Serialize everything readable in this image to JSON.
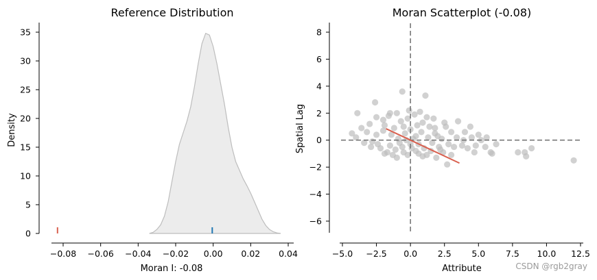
{
  "chart_data": [
    {
      "type": "area",
      "title": "Reference Distribution",
      "xlabel": "Moran I: -0.08",
      "ylabel": "Density",
      "xlim": [
        -0.09,
        0.04
      ],
      "ylim": [
        0,
        36
      ],
      "xticks": [
        -0.08,
        -0.06,
        -0.04,
        -0.02,
        0.0,
        0.02,
        0.04
      ],
      "xtick_labels": [
        "−0.08",
        "−0.06",
        "−0.04",
        "−0.02",
        "0.00",
        "0.02",
        "0.04"
      ],
      "yticks": [
        0,
        5,
        10,
        15,
        20,
        25,
        30,
        35
      ],
      "ytick_labels": [
        "0",
        "5",
        "10",
        "15",
        "20",
        "25",
        "30",
        "35"
      ],
      "density_x": [
        -0.034,
        -0.032,
        -0.03,
        -0.028,
        -0.026,
        -0.024,
        -0.022,
        -0.02,
        -0.018,
        -0.016,
        -0.014,
        -0.012,
        -0.01,
        -0.008,
        -0.006,
        -0.004,
        -0.002,
        0.0,
        0.002,
        0.004,
        0.006,
        0.008,
        0.01,
        0.012,
        0.014,
        0.016,
        0.018,
        0.02,
        0.022,
        0.024,
        0.026,
        0.028,
        0.03,
        0.032,
        0.034,
        0.036
      ],
      "density_y": [
        0.0,
        0.2,
        0.7,
        1.5,
        3.0,
        5.5,
        9.0,
        12.5,
        15.5,
        17.5,
        19.5,
        22.0,
        25.5,
        29.5,
        33.0,
        34.8,
        34.5,
        32.5,
        29.5,
        26.0,
        22.5,
        18.5,
        15.0,
        12.5,
        11.0,
        9.5,
        8.3,
        7.0,
        5.5,
        4.0,
        2.5,
        1.4,
        0.7,
        0.3,
        0.1,
        0.0
      ],
      "fill_color": "#ececec",
      "line_color": "#bdbdbd",
      "observed_value": -0.083,
      "observed_color": "#d9604f",
      "expected_value": -0.0005,
      "expected_color": "#1f77b4"
    },
    {
      "type": "scatter",
      "title": "Moran Scatterplot (-0.08)",
      "xlabel": "Attribute",
      "ylabel": "Spatial Lag",
      "xlim": [
        -5.5,
        12.6
      ],
      "ylim": [
        -7.0,
        8.7
      ],
      "xticks": [
        -5.0,
        -2.5,
        0.0,
        2.5,
        5.0,
        7.5,
        10.0,
        12.5
      ],
      "xtick_labels": [
        "−5.0",
        "−2.5",
        "0.0",
        "2.5",
        "5.0",
        "7.5",
        "10.0",
        "12.5"
      ],
      "yticks": [
        -6,
        -4,
        -2,
        0,
        2,
        4,
        6,
        8
      ],
      "ytick_labels": [
        "−6",
        "−4",
        "−2",
        "0",
        "2",
        "4",
        "6",
        "8"
      ],
      "point_color": "#bdbdbd",
      "fit_color": "#d9604f",
      "fit_line": {
        "x": [
          -1.8,
          3.6
        ],
        "y": [
          0.85,
          -1.7
        ]
      },
      "reference_lines": {
        "x": 0,
        "y": 0
      },
      "points": [
        [
          -2.6,
          2.8
        ],
        [
          -3.9,
          2.0
        ],
        [
          -4.3,
          0.5
        ],
        [
          -4.0,
          0.2
        ],
        [
          -3.4,
          -0.2
        ],
        [
          -1.9,
          -1.0
        ],
        [
          -1.0,
          -1.3
        ],
        [
          -0.5,
          -0.9
        ],
        [
          0.6,
          -1.0
        ],
        [
          1.2,
          -1.1
        ],
        [
          1.9,
          -1.3
        ],
        [
          2.7,
          -1.8
        ],
        [
          2.2,
          -0.7
        ],
        [
          1.1,
          3.3
        ],
        [
          -0.6,
          3.6
        ],
        [
          4.0,
          0.6
        ],
        [
          4.5,
          0.2
        ],
        [
          5.6,
          0.2
        ],
        [
          5.5,
          -0.5
        ],
        [
          5.9,
          -0.9
        ],
        [
          6.0,
          -1.0
        ],
        [
          7.9,
          -0.9
        ],
        [
          8.4,
          -0.9
        ],
        [
          8.5,
          -1.2
        ],
        [
          8.9,
          -0.6
        ],
        [
          12.0,
          -1.5
        ],
        [
          4.4,
          1.0
        ],
        [
          3.5,
          1.4
        ],
        [
          3.0,
          0.6
        ],
        [
          2.5,
          1.3
        ],
        [
          -1.5,
          2.0
        ],
        [
          -1.0,
          2.0
        ],
        [
          -2.5,
          1.7
        ],
        [
          -2.0,
          1.5
        ],
        [
          -3.0,
          1.2
        ],
        [
          -3.2,
          0.6
        ],
        [
          -2.5,
          0.4
        ],
        [
          -2.8,
          -0.1
        ],
        [
          -2.2,
          -0.6
        ],
        [
          -1.5,
          -0.4
        ],
        [
          -0.8,
          -0.2
        ],
        [
          -0.4,
          0.5
        ],
        [
          0.0,
          0.8
        ],
        [
          0.4,
          0.3
        ],
        [
          0.8,
          0.6
        ],
        [
          1.3,
          0.2
        ],
        [
          1.6,
          -0.2
        ],
        [
          2.0,
          0.3
        ],
        [
          2.3,
          0.1
        ],
        [
          2.8,
          -0.3
        ],
        [
          3.2,
          -0.5
        ],
        [
          3.8,
          -0.4
        ],
        [
          4.2,
          -0.6
        ],
        [
          4.8,
          -0.4
        ],
        [
          5.2,
          0.0
        ],
        [
          -1.2,
          0.9
        ],
        [
          -0.7,
          1.4
        ],
        [
          -0.2,
          1.6
        ],
        [
          0.3,
          1.9
        ],
        [
          0.9,
          1.3
        ],
        [
          1.4,
          1.0
        ],
        [
          1.8,
          0.9
        ],
        [
          -2.0,
          0.7
        ],
        [
          -1.7,
          -0.9
        ],
        [
          -1.1,
          -0.7
        ],
        [
          -0.6,
          -0.5
        ],
        [
          0.1,
          -0.6
        ],
        [
          0.6,
          -0.3
        ],
        [
          1.0,
          -0.6
        ],
        [
          1.5,
          -0.8
        ],
        [
          2.4,
          -0.9
        ],
        [
          3.0,
          -1.1
        ],
        [
          -0.3,
          0.0
        ],
        [
          0.2,
          0.1
        ],
        [
          -1.4,
          0.4
        ],
        [
          -0.9,
          0.1
        ],
        [
          0.5,
          1.1
        ],
        [
          1.7,
          1.6
        ],
        [
          -1.9,
          1.1
        ],
        [
          -2.4,
          -0.3
        ],
        [
          -0.1,
          2.2
        ],
        [
          0.7,
          2.1
        ],
        [
          -1.6,
          1.8
        ],
        [
          2.6,
          1.0
        ],
        [
          3.4,
          0.2
        ],
        [
          -3.6,
          0.9
        ],
        [
          4.7,
          -0.9
        ],
        [
          0.9,
          -1.2
        ],
        [
          -0.2,
          -1.1
        ],
        [
          1.8,
          0.5
        ],
        [
          -0.5,
          1.0
        ],
        [
          0.0,
          -0.3
        ],
        [
          2.1,
          -0.5
        ],
        [
          -2.9,
          -0.5
        ],
        [
          3.9,
          0.0
        ],
        [
          6.3,
          -0.3
        ],
        [
          5.0,
          0.4
        ],
        [
          -1.3,
          -1.1
        ],
        [
          1.2,
          1.7
        ],
        [
          0.4,
          -0.8
        ]
      ]
    }
  ],
  "watermark": "CSDN @rgb2gray"
}
